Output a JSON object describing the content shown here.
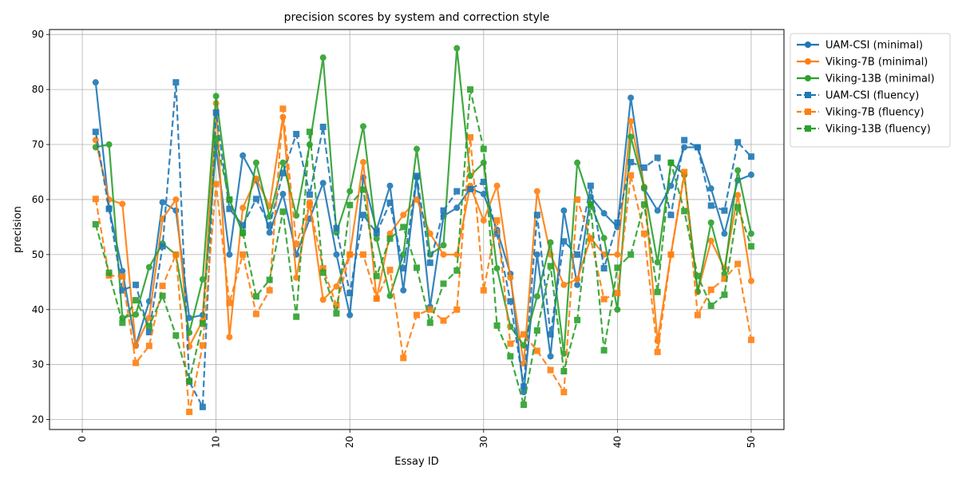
{
  "chart_data": {
    "type": "line",
    "title": "precision scores by system and correction style",
    "xlabel": "Essay ID",
    "ylabel": "precision",
    "xlim": [
      -2.45,
      52.45
    ],
    "ylim": [
      18.2,
      90.9
    ],
    "xticks": [
      0,
      10,
      20,
      30,
      40,
      50
    ],
    "yticks": [
      20,
      30,
      40,
      50,
      60,
      70,
      80,
      90
    ],
    "grid": true,
    "legend_position": "outside-top-right",
    "x": [
      1,
      2,
      3,
      4,
      5,
      6,
      7,
      8,
      9,
      10,
      11,
      12,
      13,
      14,
      15,
      16,
      17,
      18,
      19,
      20,
      21,
      22,
      23,
      24,
      25,
      26,
      27,
      28,
      29,
      30,
      31,
      32,
      33,
      34,
      35,
      36,
      37,
      38,
      39,
      40,
      41,
      42,
      43,
      44,
      45,
      46,
      47,
      48,
      49,
      50
    ],
    "series": [
      {
        "name": "UAM-CSI (minimal)",
        "color": "#1f77b4",
        "marker": "circle",
        "dash": "solid",
        "values": [
          81.3,
          58.5,
          47.0,
          33.5,
          41.5,
          59.5,
          58.0,
          38.5,
          39.0,
          69.5,
          50.0,
          68.0,
          63.5,
          54.0,
          61.0,
          50.0,
          56.5,
          63.0,
          50.0,
          39.0,
          64.0,
          54.5,
          62.5,
          43.5,
          64.0,
          40.5,
          57.0,
          58.5,
          62.0,
          61.0,
          54.5,
          46.5,
          25.0,
          50.0,
          31.5,
          58.0,
          44.5,
          60.5,
          57.5,
          55.0,
          78.5,
          62.0,
          58.0,
          62.5,
          69.5,
          69.5,
          62.0,
          53.8,
          63.5,
          64.5
        ]
      },
      {
        "name": "Viking-7B (minimal)",
        "color": "#ff7f0e",
        "marker": "circle",
        "dash": "solid",
        "values": [
          70.8,
          60.0,
          59.2,
          33.4,
          38.5,
          56.5,
          60.0,
          33.3,
          38.0,
          77.5,
          35.0,
          58.5,
          63.8,
          58.8,
          75.0,
          45.8,
          59.5,
          41.8,
          44.2,
          50.0,
          66.8,
          42.0,
          53.8,
          57.2,
          60.0,
          53.8,
          50.0,
          50.0,
          62.5,
          56.2,
          62.5,
          45.8,
          30.2,
          61.5,
          50.0,
          44.5,
          45.5,
          53.0,
          50.0,
          50.0,
          74.2,
          62.3,
          34.3,
          50.0,
          64.5,
          43.2,
          52.5,
          47.5,
          60.8,
          45.2
        ]
      },
      {
        "name": "Viking-13B (minimal)",
        "color": "#2ca02c",
        "marker": "circle",
        "dash": "solid",
        "values": [
          69.5,
          70.0,
          38.5,
          39.1,
          47.7,
          52.0,
          50.0,
          35.8,
          45.5,
          78.8,
          60.0,
          53.8,
          66.7,
          56.9,
          66.7,
          57.1,
          70.0,
          85.8,
          54.0,
          61.5,
          73.3,
          52.9,
          42.5,
          50.0,
          69.2,
          50.0,
          51.7,
          87.5,
          64.3,
          66.7,
          47.5,
          36.9,
          33.5,
          42.4,
          52.2,
          32.0,
          66.7,
          59.2,
          53.0,
          40.0,
          71.4,
          62.2,
          48.6,
          66.7,
          64.5,
          43.3,
          55.8,
          46.5,
          65.3,
          53.8
        ]
      },
      {
        "name": "UAM-CSI (fluency)",
        "color": "#1f77b4",
        "marker": "square",
        "dash": "dashed",
        "values": [
          72.3,
          58.3,
          43.5,
          44.5,
          35.9,
          51.5,
          81.3,
          26.9,
          22.3,
          75.8,
          58.3,
          55.3,
          60.1,
          55.3,
          64.8,
          71.9,
          60.9,
          73.2,
          54.8,
          43.0,
          57.2,
          53.9,
          59.4,
          47.5,
          64.3,
          48.5,
          58.0,
          61.5,
          61.9,
          63.2,
          53.8,
          41.5,
          26.0,
          57.2,
          35.5,
          52.4,
          50.0,
          62.5,
          47.5,
          55.8,
          66.8,
          65.8,
          67.6,
          57.2,
          70.8,
          69.5,
          58.9,
          58.0,
          70.4,
          67.8
        ]
      },
      {
        "name": "Viking-7B (fluency)",
        "color": "#ff7f0e",
        "marker": "square",
        "dash": "dashed",
        "values": [
          60.1,
          46.2,
          46.0,
          30.3,
          33.4,
          44.3,
          50.0,
          21.4,
          33.5,
          62.8,
          41.2,
          50.0,
          39.2,
          43.5,
          76.5,
          51.9,
          59.0,
          47.5,
          40.8,
          50.0,
          50.0,
          42.0,
          47.2,
          31.2,
          39.0,
          40.0,
          38.0,
          40.0,
          71.3,
          43.5,
          56.2,
          33.8,
          35.5,
          32.5,
          29.0,
          25.0,
          60.0,
          52.9,
          41.9,
          43.0,
          64.4,
          53.8,
          32.3,
          50.0,
          65.0,
          39.0,
          43.6,
          45.6,
          48.3,
          34.5
        ]
      },
      {
        "name": "Viking-13B (fluency)",
        "color": "#2ca02c",
        "marker": "square",
        "dash": "dashed",
        "values": [
          55.5,
          46.7,
          37.6,
          41.7,
          37.0,
          42.5,
          35.3,
          27.0,
          37.5,
          71.1,
          60.0,
          54.0,
          42.4,
          45.4,
          57.8,
          38.7,
          72.3,
          46.7,
          39.3,
          59.0,
          61.8,
          46.1,
          52.9,
          55.0,
          47.6,
          37.6,
          44.7,
          47.1,
          80.0,
          69.2,
          37.1,
          31.5,
          22.7,
          36.2,
          47.9,
          28.8,
          38.1,
          59.0,
          32.6,
          47.6,
          50.0,
          59.1,
          43.2,
          66.7,
          57.9,
          46.1,
          40.7,
          42.7,
          58.6,
          51.5
        ]
      }
    ]
  }
}
